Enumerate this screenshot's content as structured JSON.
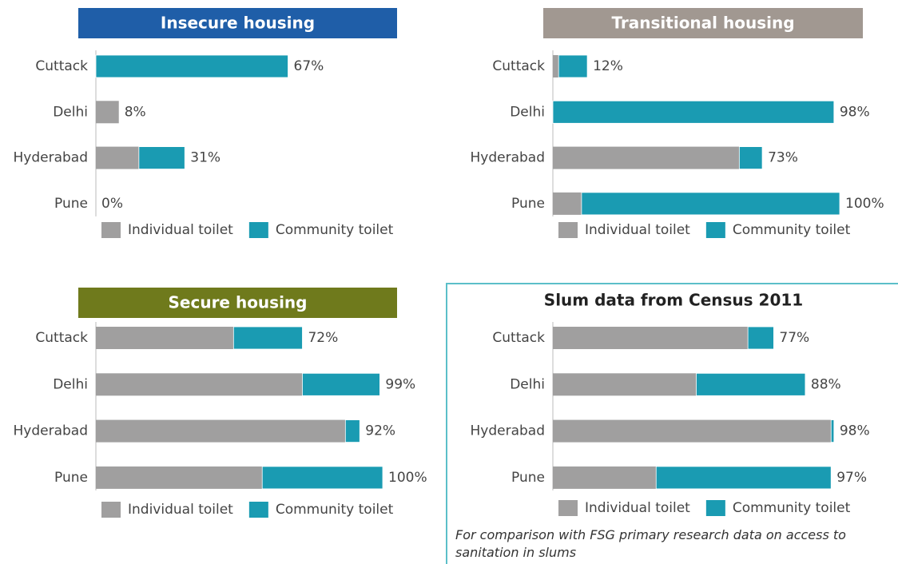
{
  "chart_data": [
    {
      "type": "bar",
      "title": "Insecure housing",
      "title_color": "#1f5ea8",
      "categories": [
        "Cuttack",
        "Delhi",
        "Hyderabad",
        "Pune"
      ],
      "series": [
        {
          "name": "Individual toilet",
          "color": "#a09f9f",
          "values": [
            0,
            8,
            15,
            0
          ]
        },
        {
          "name": "Community toilet",
          "color": "#1a9bb2",
          "values": [
            67,
            0,
            16,
            0
          ]
        }
      ],
      "totals": [
        67,
        8,
        31,
        0
      ],
      "total_labels": [
        "67%",
        "8%",
        "31%",
        "0%"
      ],
      "xlim": [
        0,
        100
      ]
    },
    {
      "type": "bar",
      "title": "Transitional housing",
      "title_color": "#a19891",
      "categories": [
        "Cuttack",
        "Delhi",
        "Hyderabad",
        "Pune"
      ],
      "series": [
        {
          "name": "Individual toilet",
          "color": "#a09f9f",
          "values": [
            2,
            0,
            65,
            10
          ]
        },
        {
          "name": "Community toilet",
          "color": "#1a9bb2",
          "values": [
            10,
            98,
            8,
            90
          ]
        }
      ],
      "totals": [
        12,
        98,
        73,
        100
      ],
      "total_labels": [
        "12%",
        "98%",
        "73%",
        "100%"
      ],
      "xlim": [
        0,
        100
      ]
    },
    {
      "type": "bar",
      "title": "Secure housing",
      "title_color": "#6f7a1c",
      "categories": [
        "Cuttack",
        "Delhi",
        "Hyderabad",
        "Pune"
      ],
      "series": [
        {
          "name": "Individual toilet",
          "color": "#a09f9f",
          "values": [
            48,
            72,
            87,
            58
          ]
        },
        {
          "name": "Community toilet",
          "color": "#1a9bb2",
          "values": [
            24,
            27,
            5,
            42
          ]
        }
      ],
      "totals": [
        72,
        99,
        92,
        100
      ],
      "total_labels": [
        "72%",
        "99%",
        "92%",
        "100%"
      ],
      "xlim": [
        0,
        100
      ]
    },
    {
      "type": "bar",
      "title": "Slum data from Census 2011",
      "categories": [
        "Cuttack",
        "Delhi",
        "Hyderabad",
        "Pune"
      ],
      "series": [
        {
          "name": "Individual toilet",
          "color": "#a09f9f",
          "values": [
            68,
            50,
            97,
            36
          ]
        },
        {
          "name": "Community toilet",
          "color": "#1a9bb2",
          "values": [
            9,
            38,
            1,
            61
          ]
        }
      ],
      "totals": [
        77,
        88,
        98,
        97
      ],
      "total_labels": [
        "77%",
        "88%",
        "98%",
        "97%"
      ],
      "xlim": [
        0,
        100
      ],
      "note": "For comparison with FSG primary research data on access to sanitation in slums"
    }
  ]
}
